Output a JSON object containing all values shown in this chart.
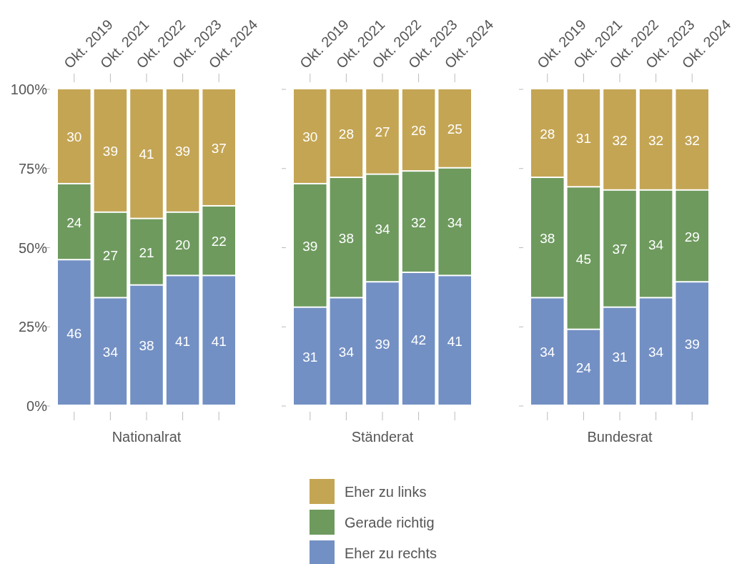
{
  "chart_data": [
    {
      "type": "bar",
      "stacked": true,
      "xlabel": "Nationalrat",
      "categories": [
        "Okt. 2019",
        "Okt. 2021",
        "Okt. 2022",
        "Okt. 2023",
        "Okt. 2024"
      ],
      "ylim": [
        0,
        100
      ],
      "yticks": [
        {
          "value": 0,
          "label": "0%"
        },
        {
          "value": 25,
          "label": "25%"
        },
        {
          "value": 50,
          "label": "50%"
        },
        {
          "value": 75,
          "label": "75%"
        },
        {
          "value": 100,
          "label": "100%"
        }
      ],
      "data_labels": true,
      "legend": "bottom",
      "series": [
        {
          "name": "Eher zu rechts",
          "color": "#7390c4",
          "values": [
            46,
            34,
            38,
            41,
            41
          ]
        },
        {
          "name": "Gerade richtig",
          "color": "#6e9a5e",
          "values": [
            24,
            27,
            21,
            20,
            22
          ]
        },
        {
          "name": "Eher zu links",
          "color": "#c4a553",
          "values": [
            30,
            39,
            41,
            39,
            37
          ]
        }
      ]
    },
    {
      "type": "bar",
      "stacked": true,
      "xlabel": "Ständerat",
      "categories": [
        "Okt. 2019",
        "Okt. 2021",
        "Okt. 2022",
        "Okt. 2023",
        "Okt. 2024"
      ],
      "ylim": [
        0,
        100
      ],
      "yticks": [
        {
          "value": 0,
          "label": null
        },
        {
          "value": 25,
          "label": null
        },
        {
          "value": 50,
          "label": null
        },
        {
          "value": 75,
          "label": null
        },
        {
          "value": 100,
          "label": null
        }
      ],
      "tick_labels": "x",
      "data_labels": true,
      "series": [
        {
          "color": "#7390c4",
          "values": [
            31,
            34,
            39,
            42,
            41
          ]
        },
        {
          "color": "#6e9a5e",
          "values": [
            39,
            38,
            34,
            32,
            34
          ]
        },
        {
          "color": "#c4a553",
          "values": [
            30,
            28,
            27,
            26,
            25
          ]
        }
      ]
    },
    {
      "type": "bar",
      "stacked": true,
      "xlabel": "Bundesrat",
      "categories": [
        "Okt. 2019",
        "Okt. 2021",
        "Okt. 2022",
        "Okt. 2023",
        "Okt. 2024"
      ],
      "ylim": [
        0,
        100
      ],
      "yticks": [
        {
          "value": 0,
          "label": null
        },
        {
          "value": 25,
          "label": null
        },
        {
          "value": 50,
          "label": null
        },
        {
          "value": 75,
          "label": null
        },
        {
          "value": 100,
          "label": null
        }
      ],
      "tick_labels": "x",
      "data_labels": true,
      "series": [
        {
          "color": "#7390c4",
          "values": [
            34,
            24,
            31,
            34,
            39
          ]
        },
        {
          "color": "#6e9a5e",
          "values": [
            38,
            45,
            37,
            34,
            29
          ]
        },
        {
          "color": "#c4a553",
          "values": [
            28,
            31,
            32,
            32,
            32
          ]
        }
      ]
    }
  ]
}
